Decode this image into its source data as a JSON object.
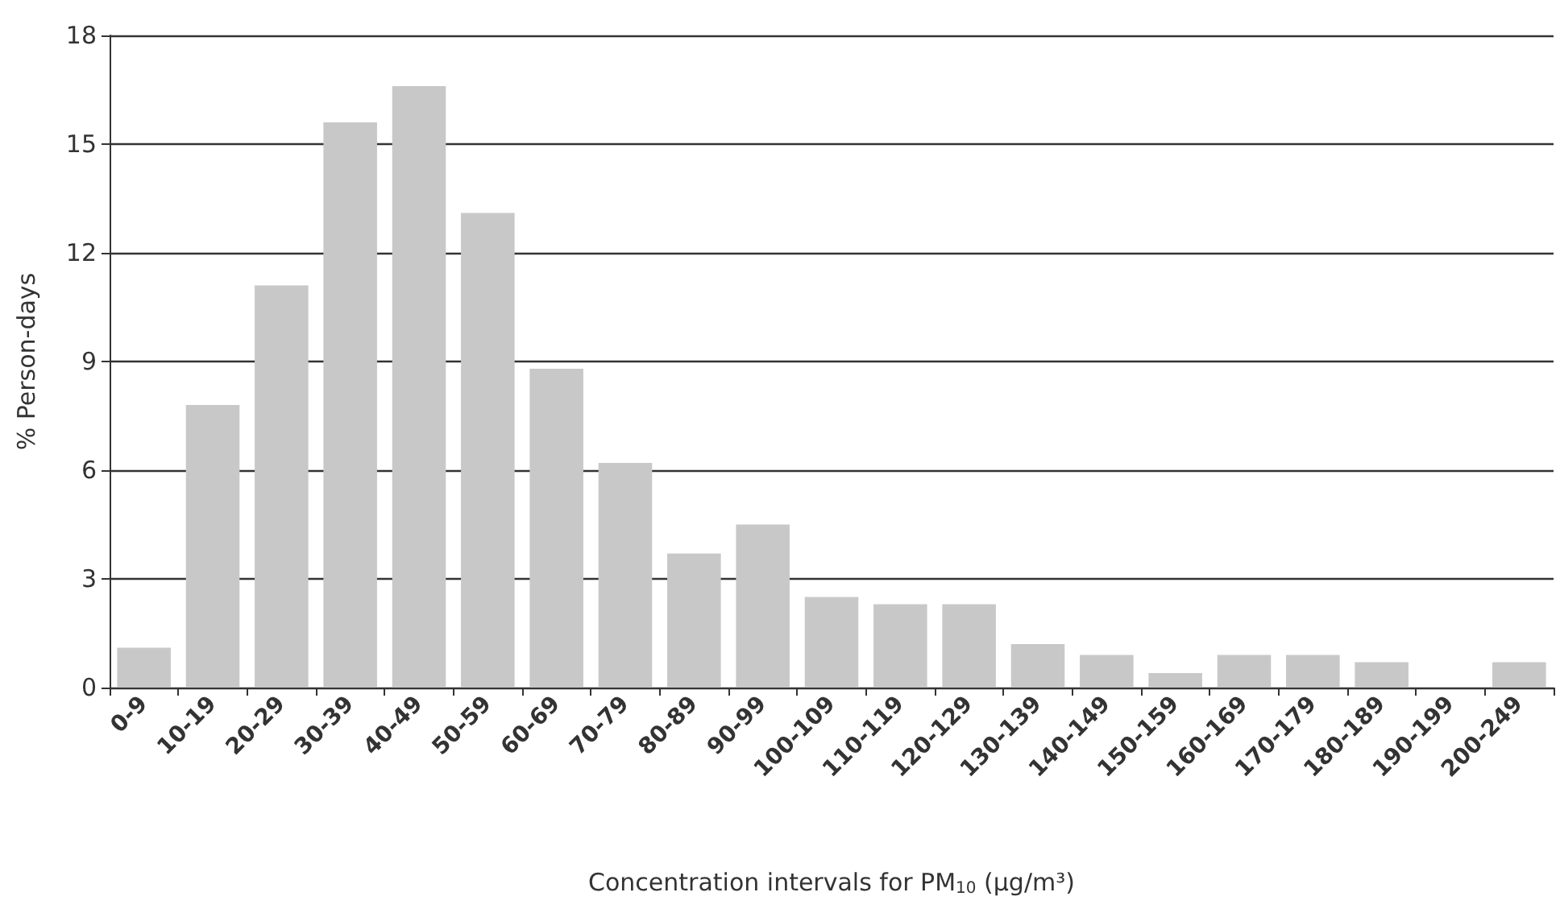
{
  "chart_data": {
    "type": "bar",
    "xlabel": "Concentration intervals for PM$_{10}$ (μg/m³)",
    "ylabel": "% Person-days",
    "categories": [
      "0-9",
      "10-19",
      "20-29",
      "30-39",
      "40-49",
      "50-59",
      "60-69",
      "70-79",
      "80-89",
      "90-99",
      "100-109",
      "110-119",
      "120-129",
      "130-139",
      "140-149",
      "150-159",
      "160-169",
      "170-179",
      "180-189",
      "190-199",
      "200-249"
    ],
    "values": [
      1.1,
      7.8,
      11.1,
      15.6,
      16.6,
      13.1,
      8.8,
      6.2,
      3.7,
      4.5,
      2.5,
      2.3,
      2.3,
      1.2,
      0.9,
      0.4,
      0.9,
      0.9,
      0.7,
      0,
      0.7
    ],
    "color": "#c8c8c8",
    "ylim": [
      0,
      18
    ],
    "yticks": [
      0,
      3,
      6,
      9,
      12,
      15,
      18
    ],
    "grid": "y"
  }
}
